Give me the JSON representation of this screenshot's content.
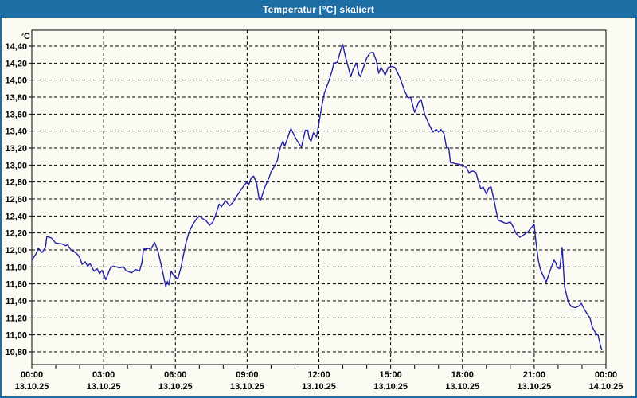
{
  "window": {
    "title": "Temperatur [°C] skaliert",
    "title_bar_color": "#1E6EA6",
    "border_color": "#1E6EA6",
    "background_color": "#FBFBF3"
  },
  "chart_data": {
    "type": "line",
    "title": "Temperatur [°C] skaliert",
    "unit_label": "°C",
    "line_color": "#2121AC",
    "grid": "dashed-black",
    "legend_position": "none",
    "ylim": [
      10.8,
      14.4
    ],
    "y_tick_step": 0.2,
    "y_ticks": [
      {
        "value": 14.4,
        "label": "14,40"
      },
      {
        "value": 14.2,
        "label": "14,20"
      },
      {
        "value": 14.0,
        "label": "14,00"
      },
      {
        "value": 13.8,
        "label": "13,80"
      },
      {
        "value": 13.6,
        "label": "13,60"
      },
      {
        "value": 13.4,
        "label": "13,40"
      },
      {
        "value": 13.2,
        "label": "13,20"
      },
      {
        "value": 13.0,
        "label": "13,00"
      },
      {
        "value": 12.8,
        "label": "12,80"
      },
      {
        "value": 12.6,
        "label": "12,60"
      },
      {
        "value": 12.4,
        "label": "12,40"
      },
      {
        "value": 12.2,
        "label": "12,20"
      },
      {
        "value": 12.0,
        "label": "12,00"
      },
      {
        "value": 11.8,
        "label": "11,80"
      },
      {
        "value": 11.6,
        "label": "11,60"
      },
      {
        "value": 11.4,
        "label": "11,40"
      },
      {
        "value": 11.2,
        "label": "11,20"
      },
      {
        "value": 11.0,
        "label": "11,00"
      },
      {
        "value": 10.8,
        "label": "10,80"
      }
    ],
    "x_total_hours": 24,
    "x_minor_tick_hours": 1,
    "x_ticks": [
      {
        "hour": 0,
        "time": "00:00",
        "date": "13.10.25"
      },
      {
        "hour": 3,
        "time": "03:00",
        "date": "13.10.25"
      },
      {
        "hour": 6,
        "time": "06:00",
        "date": "13.10.25"
      },
      {
        "hour": 9,
        "time": "09:00",
        "date": "13.10.25"
      },
      {
        "hour": 12,
        "time": "12:00",
        "date": "13.10.25"
      },
      {
        "hour": 15,
        "time": "15:00",
        "date": "13.10.25"
      },
      {
        "hour": 18,
        "time": "18:00",
        "date": "13.10.25"
      },
      {
        "hour": 21,
        "time": "21:00",
        "date": "13.10.25"
      },
      {
        "hour": 24,
        "time": "00:00",
        "date": "14.10.25"
      }
    ],
    "series": [
      {
        "name": "Temperatur",
        "points": [
          [
            0.0,
            11.88
          ],
          [
            0.17,
            11.95
          ],
          [
            0.27,
            12.02
          ],
          [
            0.43,
            11.97
          ],
          [
            0.57,
            12.03
          ],
          [
            0.63,
            12.16
          ],
          [
            0.83,
            12.14
          ],
          [
            1.0,
            12.08
          ],
          [
            1.27,
            12.07
          ],
          [
            1.4,
            12.05
          ],
          [
            1.5,
            12.06
          ],
          [
            1.63,
            12.0
          ],
          [
            1.77,
            11.98
          ],
          [
            1.9,
            11.95
          ],
          [
            2.0,
            11.91
          ],
          [
            2.1,
            11.83
          ],
          [
            2.23,
            11.86
          ],
          [
            2.33,
            11.81
          ],
          [
            2.43,
            11.84
          ],
          [
            2.6,
            11.75
          ],
          [
            2.73,
            11.78
          ],
          [
            2.83,
            11.72
          ],
          [
            2.93,
            11.76
          ],
          [
            3.1,
            11.65
          ],
          [
            3.27,
            11.78
          ],
          [
            3.4,
            11.81
          ],
          [
            3.67,
            11.79
          ],
          [
            3.83,
            11.8
          ],
          [
            3.93,
            11.76
          ],
          [
            4.17,
            11.73
          ],
          [
            4.33,
            11.77
          ],
          [
            4.5,
            11.75
          ],
          [
            4.6,
            11.85
          ],
          [
            4.67,
            12.01
          ],
          [
            5.0,
            12.02
          ],
          [
            5.13,
            12.09
          ],
          [
            5.27,
            11.99
          ],
          [
            5.4,
            11.83
          ],
          [
            5.6,
            11.57
          ],
          [
            5.67,
            11.63
          ],
          [
            5.73,
            11.59
          ],
          [
            5.83,
            11.75
          ],
          [
            5.93,
            11.7
          ],
          [
            6.1,
            11.66
          ],
          [
            6.23,
            11.79
          ],
          [
            6.33,
            11.93
          ],
          [
            6.43,
            12.07
          ],
          [
            6.57,
            12.21
          ],
          [
            6.73,
            12.3
          ],
          [
            6.87,
            12.36
          ],
          [
            7.0,
            12.4
          ],
          [
            7.13,
            12.37
          ],
          [
            7.27,
            12.35
          ],
          [
            7.43,
            12.29
          ],
          [
            7.57,
            12.33
          ],
          [
            7.67,
            12.4
          ],
          [
            7.83,
            12.54
          ],
          [
            7.93,
            12.51
          ],
          [
            8.1,
            12.58
          ],
          [
            8.27,
            12.52
          ],
          [
            8.43,
            12.57
          ],
          [
            8.6,
            12.65
          ],
          [
            8.77,
            12.72
          ],
          [
            8.9,
            12.77
          ],
          [
            9.0,
            12.8
          ],
          [
            9.07,
            12.77
          ],
          [
            9.17,
            12.85
          ],
          [
            9.27,
            12.87
          ],
          [
            9.4,
            12.78
          ],
          [
            9.5,
            12.6
          ],
          [
            9.57,
            12.59
          ],
          [
            9.67,
            12.68
          ],
          [
            9.77,
            12.76
          ],
          [
            9.9,
            12.84
          ],
          [
            10.0,
            12.92
          ],
          [
            10.13,
            12.98
          ],
          [
            10.27,
            13.06
          ],
          [
            10.33,
            13.15
          ],
          [
            10.43,
            13.24
          ],
          [
            10.5,
            13.28
          ],
          [
            10.57,
            13.22
          ],
          [
            10.73,
            13.35
          ],
          [
            10.83,
            13.43
          ],
          [
            11.0,
            13.33
          ],
          [
            11.17,
            13.25
          ],
          [
            11.27,
            13.21
          ],
          [
            11.43,
            13.41
          ],
          [
            11.53,
            13.41
          ],
          [
            11.6,
            13.31
          ],
          [
            11.67,
            13.28
          ],
          [
            11.77,
            13.38
          ],
          [
            11.9,
            13.33
          ],
          [
            12.0,
            13.49
          ],
          [
            12.1,
            13.66
          ],
          [
            12.23,
            13.85
          ],
          [
            12.43,
            14.0
          ],
          [
            12.55,
            14.11
          ],
          [
            12.63,
            14.2
          ],
          [
            12.77,
            14.21
          ],
          [
            12.93,
            14.37
          ],
          [
            13.0,
            14.42
          ],
          [
            13.1,
            14.29
          ],
          [
            13.23,
            14.15
          ],
          [
            13.33,
            14.04
          ],
          [
            13.43,
            14.13
          ],
          [
            13.57,
            14.2
          ],
          [
            13.67,
            14.07
          ],
          [
            13.73,
            14.04
          ],
          [
            13.9,
            14.18
          ],
          [
            14.0,
            14.26
          ],
          [
            14.13,
            14.32
          ],
          [
            14.27,
            14.33
          ],
          [
            14.4,
            14.23
          ],
          [
            14.5,
            14.08
          ],
          [
            14.6,
            14.15
          ],
          [
            14.7,
            14.1
          ],
          [
            14.77,
            14.06
          ],
          [
            14.9,
            14.15
          ],
          [
            15.07,
            14.16
          ],
          [
            15.17,
            14.15
          ],
          [
            15.27,
            14.1
          ],
          [
            15.4,
            14.02
          ],
          [
            15.5,
            13.94
          ],
          [
            15.6,
            13.86
          ],
          [
            15.73,
            13.79
          ],
          [
            15.83,
            13.8
          ],
          [
            16.0,
            13.62
          ],
          [
            16.17,
            13.74
          ],
          [
            16.27,
            13.77
          ],
          [
            16.43,
            13.59
          ],
          [
            16.57,
            13.5
          ],
          [
            16.67,
            13.44
          ],
          [
            16.77,
            13.39
          ],
          [
            16.9,
            13.42
          ],
          [
            17.0,
            13.39
          ],
          [
            17.1,
            13.42
          ],
          [
            17.23,
            13.37
          ],
          [
            17.33,
            13.21
          ],
          [
            17.43,
            13.2
          ],
          [
            17.5,
            13.03
          ],
          [
            17.67,
            13.02
          ],
          [
            17.83,
            13.01
          ],
          [
            18.0,
            13.0
          ],
          [
            18.17,
            12.97
          ],
          [
            18.27,
            12.91
          ],
          [
            18.43,
            12.93
          ],
          [
            18.57,
            12.91
          ],
          [
            18.67,
            12.8
          ],
          [
            18.77,
            12.72
          ],
          [
            18.87,
            12.74
          ],
          [
            19.0,
            12.66
          ],
          [
            19.1,
            12.73
          ],
          [
            19.2,
            12.74
          ],
          [
            19.33,
            12.57
          ],
          [
            19.47,
            12.38
          ],
          [
            19.5,
            12.35
          ],
          [
            19.67,
            12.33
          ],
          [
            19.83,
            12.31
          ],
          [
            20.0,
            12.33
          ],
          [
            20.13,
            12.27
          ],
          [
            20.23,
            12.2
          ],
          [
            20.4,
            12.15
          ],
          [
            20.57,
            12.18
          ],
          [
            20.73,
            12.21
          ],
          [
            20.87,
            12.26
          ],
          [
            21.0,
            12.3
          ],
          [
            21.07,
            12.1
          ],
          [
            21.17,
            11.88
          ],
          [
            21.27,
            11.76
          ],
          [
            21.4,
            11.68
          ],
          [
            21.5,
            11.62
          ],
          [
            21.67,
            11.76
          ],
          [
            21.83,
            11.88
          ],
          [
            21.9,
            11.85
          ],
          [
            21.97,
            11.79
          ],
          [
            22.07,
            11.78
          ],
          [
            22.17,
            12.03
          ],
          [
            22.27,
            11.57
          ],
          [
            22.43,
            11.38
          ],
          [
            22.57,
            11.33
          ],
          [
            22.73,
            11.32
          ],
          [
            22.87,
            11.34
          ],
          [
            22.97,
            11.37
          ],
          [
            23.1,
            11.3
          ],
          [
            23.23,
            11.24
          ],
          [
            23.33,
            11.2
          ],
          [
            23.43,
            11.09
          ],
          [
            23.57,
            11.02
          ],
          [
            23.67,
            11.0
          ],
          [
            23.77,
            10.87
          ],
          [
            23.83,
            10.82
          ]
        ]
      }
    ]
  }
}
